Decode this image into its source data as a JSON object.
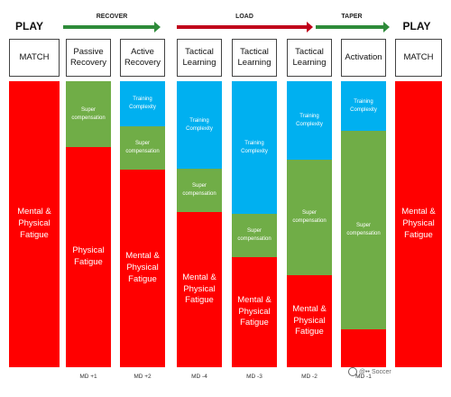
{
  "phases": {
    "play_left": "PLAY",
    "recover": "RECOVER",
    "load": "LOAD",
    "taper": "TAPER",
    "play_right": "PLAY"
  },
  "colors": {
    "mental_physical_fatigue": "#ff0000",
    "super_compensation": "#70ad47",
    "training_complexity": "#00b0f0",
    "recover_arrow": "#2e8b3a",
    "load_arrow": "#c0001a",
    "taper_arrow": "#2e8b3a"
  },
  "columns": [
    {
      "header": "MATCH",
      "day": "",
      "fatigue": "Mental & Physical Fatigue",
      "fatigue_level": 1.0
    },
    {
      "header": "Passive Recovery",
      "day": "MD +1",
      "super_compensation": "Super compensation",
      "fatigue": "Physical Fatigue",
      "fatigue_level": 0.77
    },
    {
      "header": "Active Recovery",
      "day": "MD +2",
      "training_complexity": "Training Complexity",
      "super_compensation": "Super compensation",
      "fatigue": "Mental & Physical Fatigue",
      "fatigue_level": 0.69
    },
    {
      "header": "Tactical Learning",
      "day": "MD -4",
      "training_complexity": "Training Complexity",
      "super_compensation": "Super compensation",
      "fatigue": "Mental & Physical Fatigue",
      "fatigue_level": 0.54
    },
    {
      "header": "Tactical Learning",
      "day": "MD -3",
      "training_complexity": "Training Complexity",
      "super_compensation": "Super compensation",
      "fatigue": "Mental & Physical Fatigue",
      "fatigue_level": 0.38
    },
    {
      "header": "Tactical Learning",
      "day": "MD -2",
      "training_complexity": "Training Complexity",
      "super_compensation": "Super compensation",
      "fatigue": "Mental & Physical Fatigue",
      "fatigue_level": 0.32
    },
    {
      "header": "Activation",
      "day": "MD -1",
      "training_complexity": "Training Complexity",
      "super_compensation": "Super compensation",
      "fatigue": "",
      "fatigue_level": 0.13
    },
    {
      "header": "MATCH",
      "day": "",
      "fatigue": "Mental & Physical Fatigue",
      "fatigue_level": 1.0
    }
  ],
  "watermark": "@•• Soccer"
}
